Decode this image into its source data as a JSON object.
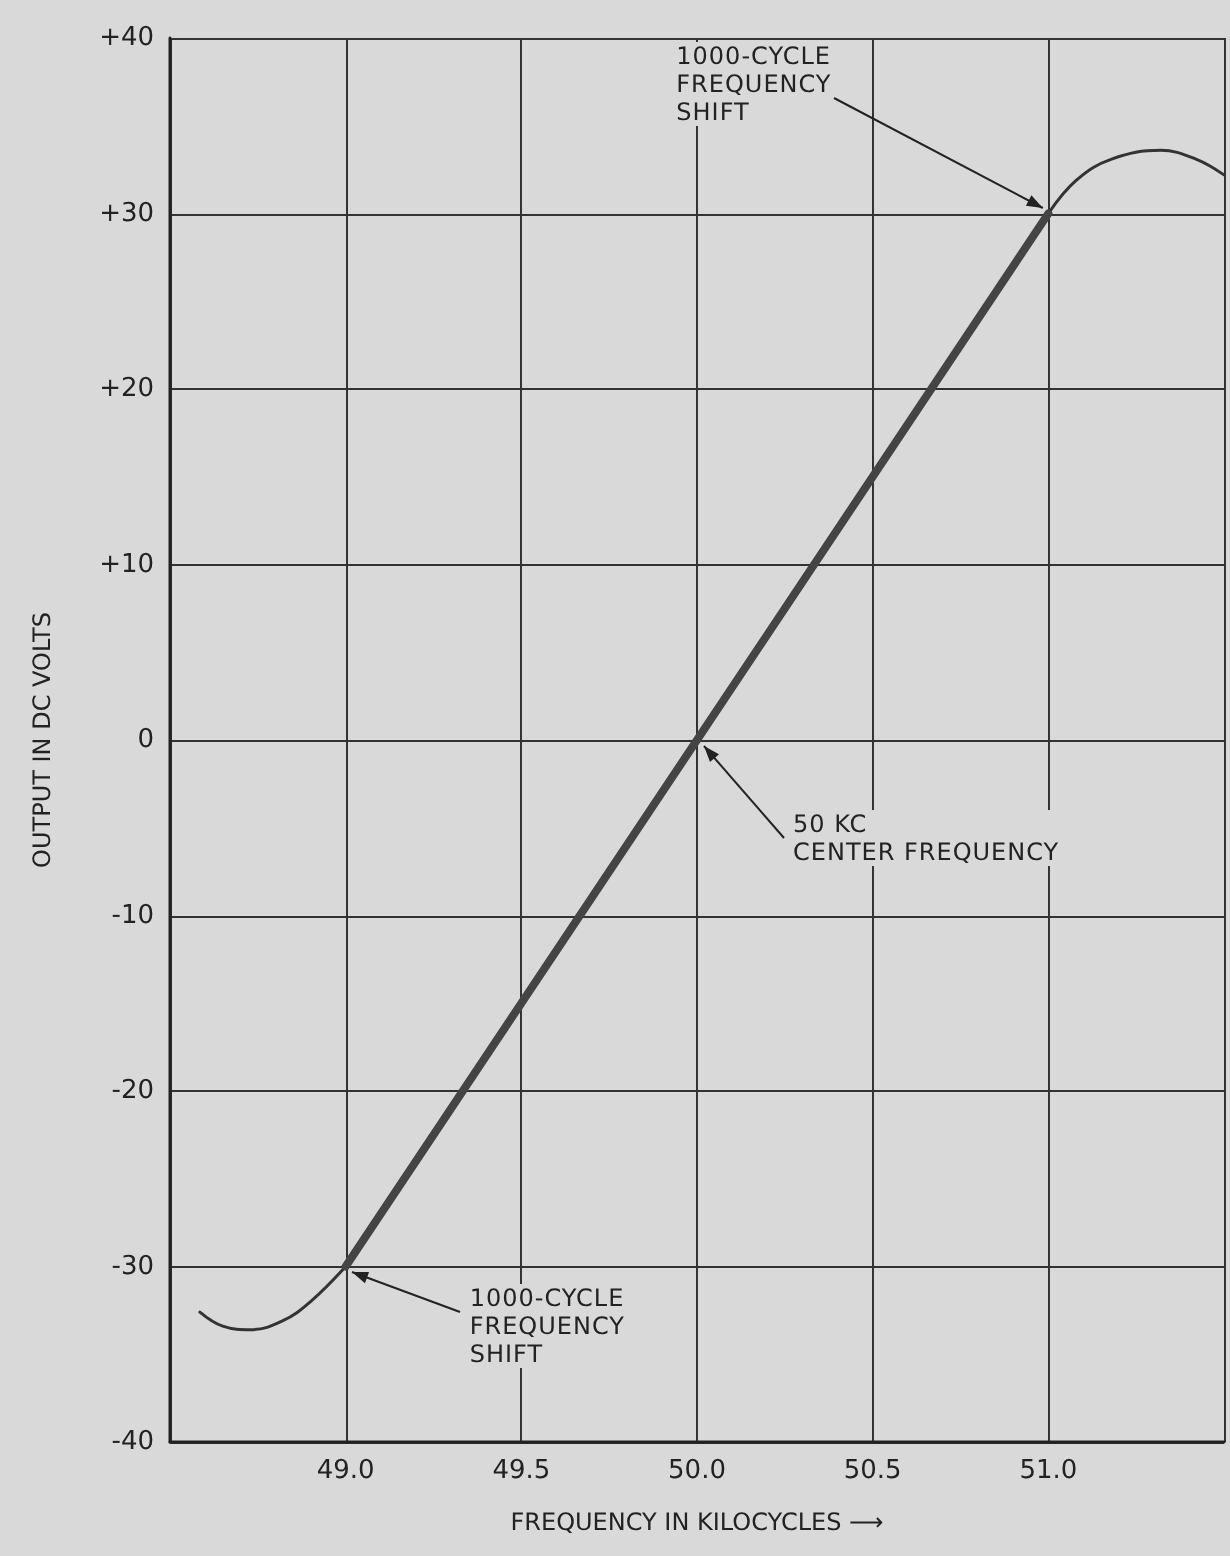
{
  "chart_data": {
    "type": "line",
    "xlabel": "FREQUENCY IN KILOCYCLES ⟶",
    "ylabel": "OUTPUT IN DC VOLTS",
    "series": [
      {
        "color": "#333333",
        "x": [
          48.585,
          48.65,
          48.73,
          48.82,
          48.9,
          49
        ],
        "values": [
          -32.6,
          -33.4,
          -33.6,
          -33.1,
          -32,
          -30
        ]
      },
      {
        "color": "#444444",
        "x": [
          49,
          50,
          51
        ],
        "values": [
          -30,
          0,
          30
        ]
      },
      {
        "color": "#333333",
        "x": [
          51,
          51.08,
          51.18,
          51.32,
          51.42,
          51.5
        ],
        "values": [
          30,
          31.9,
          33.1,
          33.6,
          33.1,
          32.2
        ]
      }
    ],
    "xlim": [
      48.5,
      51.5
    ],
    "xticks": [
      {
        "value": 48.5,
        "label": null
      },
      {
        "value": 49,
        "label": "49.0"
      },
      {
        "value": 49.5,
        "label": "49.5"
      },
      {
        "value": 50,
        "label": "50.0"
      },
      {
        "value": 50.5,
        "label": "50.5"
      },
      {
        "value": 51,
        "label": "51.0"
      },
      {
        "value": 51.5,
        "label": null
      }
    ],
    "ylim": [
      -40,
      40
    ],
    "yticks": [
      -40,
      -30,
      -20,
      -10,
      0,
      {
        "value": 10,
        "label": "+10"
      },
      {
        "value": 20,
        "label": "+20"
      },
      {
        "value": 30,
        "label": "+30"
      },
      {
        "value": 40,
        "label": "+40"
      }
    ],
    "grid": true,
    "marker": "none",
    "annotations": [
      {
        "text": "1000-CYCLE\nFREQUENCY\nSHIFT",
        "x": 51,
        "y": 30
      },
      {
        "text": "50 KC\nCENTER FREQUENCY",
        "x": 50,
        "y": 0
      },
      {
        "text": "1000-CYCLE\nFREQUENCY\nSHIFT",
        "x": 49,
        "y": -30
      }
    ]
  }
}
